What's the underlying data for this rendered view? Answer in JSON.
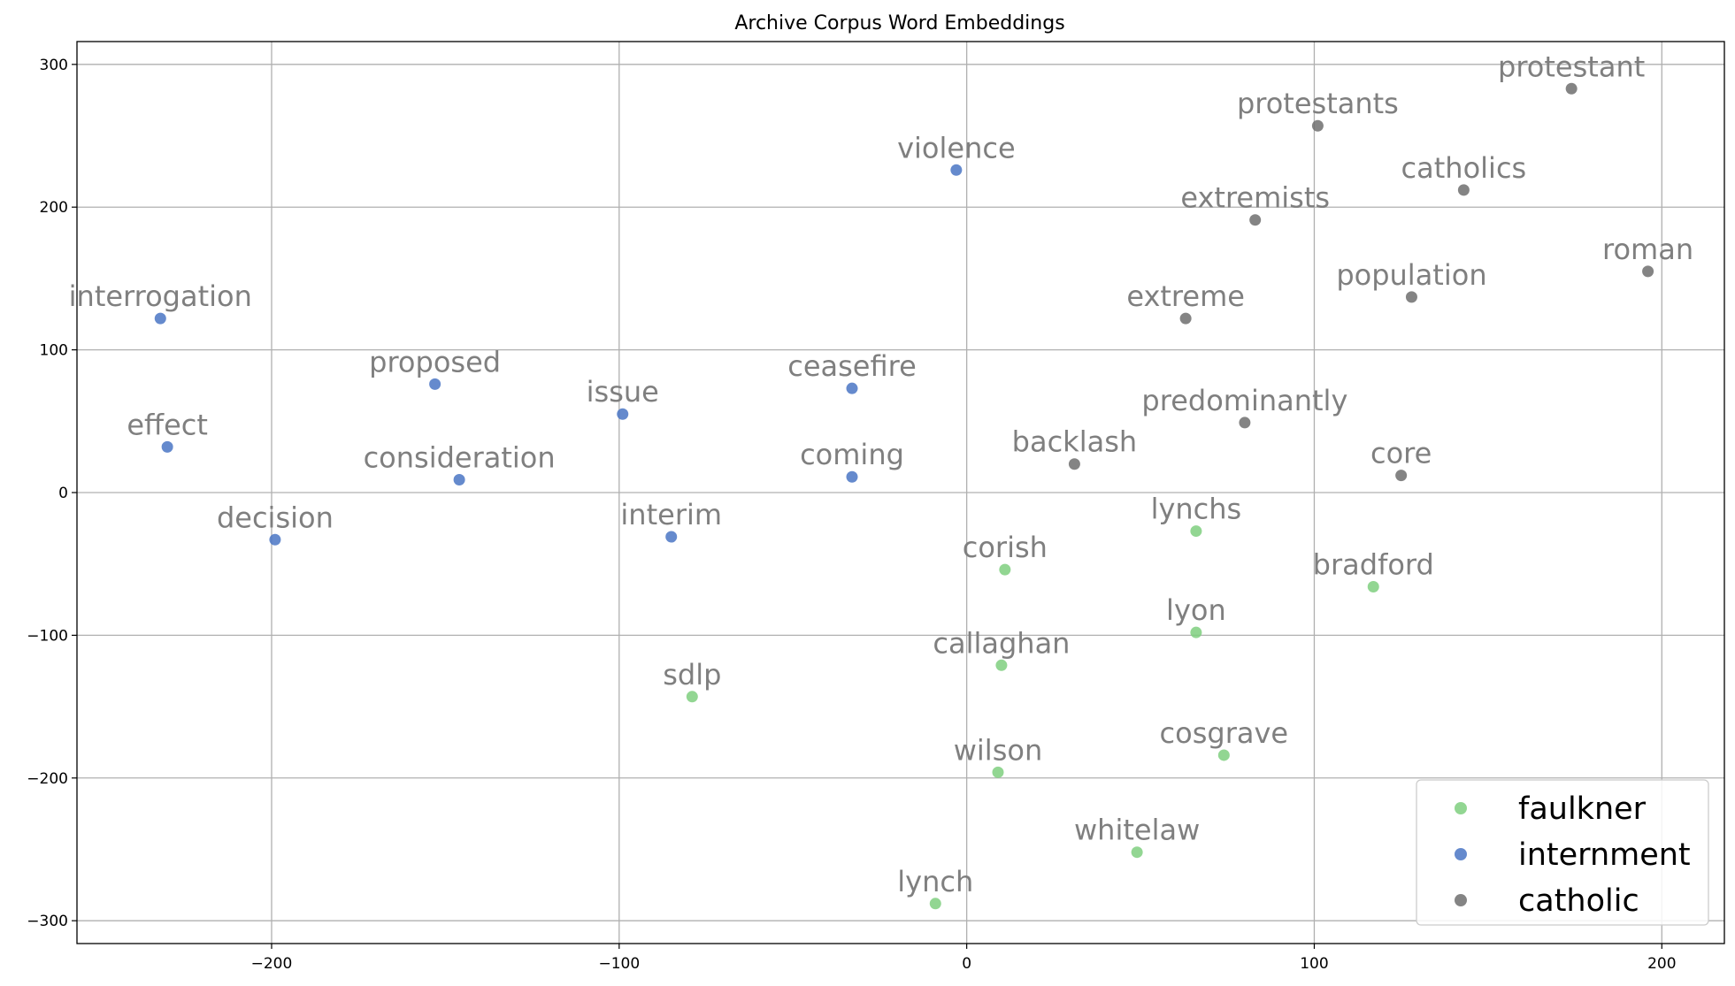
{
  "chart_data": {
    "type": "scatter",
    "title": "Archive Corpus Word Embeddings",
    "xlabel": "",
    "ylabel": "",
    "xlim": [
      -256,
      218
    ],
    "ylim": [
      -316,
      316
    ],
    "x_ticks": [
      -200,
      -100,
      0,
      100,
      200
    ],
    "y_ticks": [
      -300,
      -200,
      -100,
      0,
      100,
      200,
      300
    ],
    "x_tick_labels": [
      "−200",
      "−100",
      "0",
      "100",
      "200"
    ],
    "y_tick_labels": [
      "−300",
      "−200",
      "−100",
      "0",
      "100",
      "200",
      "300"
    ],
    "grid": true,
    "legend_position": "bottom-right",
    "series": [
      {
        "name": "faulkner",
        "color": "#7fcf7f",
        "points": [
          {
            "label": "lynchs",
            "x": 66,
            "y": -27
          },
          {
            "label": "corish",
            "x": 11,
            "y": -54
          },
          {
            "label": "bradford",
            "x": 117,
            "y": -66
          },
          {
            "label": "lyon",
            "x": 66,
            "y": -98
          },
          {
            "label": "callaghan",
            "x": 10,
            "y": -121
          },
          {
            "label": "sdlp",
            "x": -79,
            "y": -143
          },
          {
            "label": "cosgrave",
            "x": 74,
            "y": -184
          },
          {
            "label": "wilson",
            "x": 9,
            "y": -196
          },
          {
            "label": "whitelaw",
            "x": 49,
            "y": -252
          },
          {
            "label": "lynch",
            "x": -9,
            "y": -288
          }
        ]
      },
      {
        "name": "internment",
        "color": "#4a76c4",
        "points": [
          {
            "label": "violence",
            "x": -3,
            "y": 226
          },
          {
            "label": "interrogation",
            "x": -232,
            "y": 122
          },
          {
            "label": "proposed",
            "x": -153,
            "y": 76
          },
          {
            "label": "ceasefire",
            "x": -33,
            "y": 73
          },
          {
            "label": "issue",
            "x": -99,
            "y": 55
          },
          {
            "label": "effect",
            "x": -230,
            "y": 32
          },
          {
            "label": "consideration",
            "x": -146,
            "y": 9
          },
          {
            "label": "coming",
            "x": -33,
            "y": 11
          },
          {
            "label": "decision",
            "x": -199,
            "y": -33
          },
          {
            "label": "interim",
            "x": -85,
            "y": -31
          }
        ]
      },
      {
        "name": "catholic",
        "color": "#6f6f6f",
        "points": [
          {
            "label": "protestant",
            "x": 174,
            "y": 283
          },
          {
            "label": "protestants",
            "x": 101,
            "y": 257
          },
          {
            "label": "catholics",
            "x": 143,
            "y": 212
          },
          {
            "label": "extremists",
            "x": 83,
            "y": 191
          },
          {
            "label": "roman",
            "x": 196,
            "y": 155
          },
          {
            "label": "population",
            "x": 128,
            "y": 137
          },
          {
            "label": "extreme",
            "x": 63,
            "y": 122
          },
          {
            "label": "predominantly",
            "x": 80,
            "y": 49
          },
          {
            "label": "backlash",
            "x": 31,
            "y": 20
          },
          {
            "label": "core",
            "x": 125,
            "y": 12
          }
        ]
      }
    ]
  }
}
